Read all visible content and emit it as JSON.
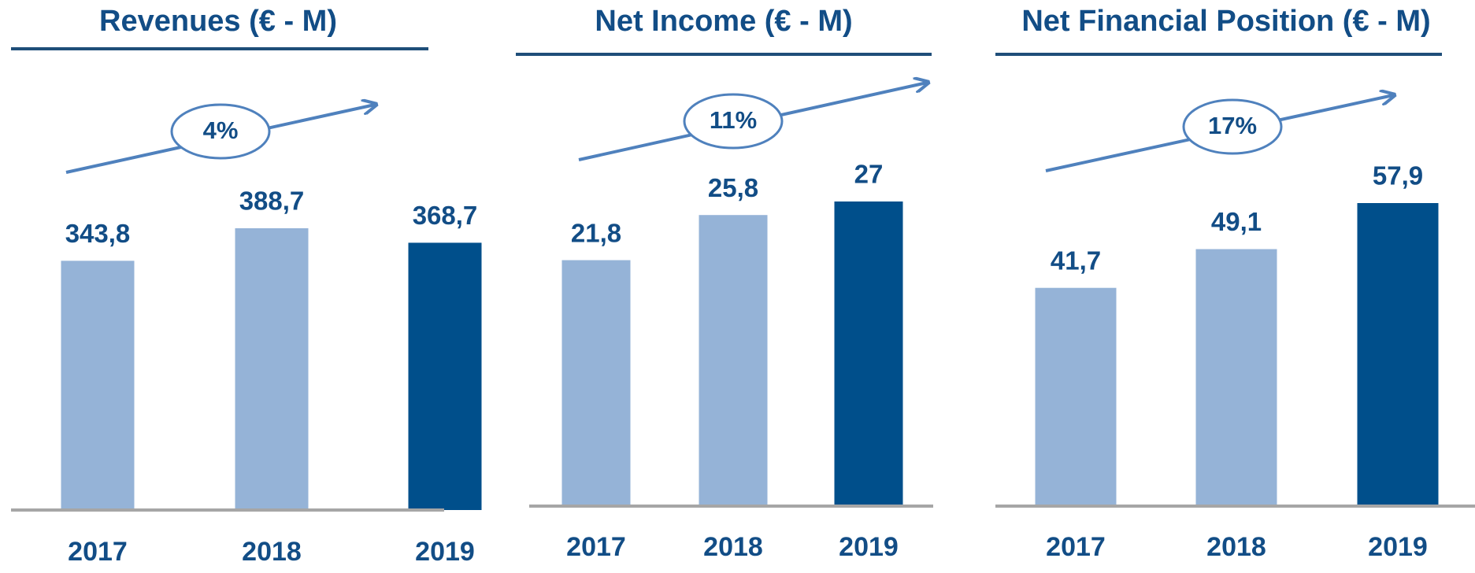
{
  "chart_data": [
    {
      "type": "bar",
      "title": "Revenues (€ - M)",
      "categories": [
        "2017",
        "2018",
        "2019"
      ],
      "values": [
        343.8,
        388.7,
        368.7
      ],
      "value_labels": [
        "343,8",
        "388,7",
        "368,7"
      ],
      "colors": [
        "#95b3d7",
        "#95b3d7",
        "#004f8b"
      ],
      "annotation": "4%"
    },
    {
      "type": "bar",
      "title": "Net Income (€ - M)",
      "categories": [
        "2017",
        "2018",
        "2019"
      ],
      "values": [
        21.8,
        25.8,
        27
      ],
      "value_labels": [
        "21,8",
        "25,8",
        "27"
      ],
      "colors": [
        "#95b3d7",
        "#95b3d7",
        "#004f8b"
      ],
      "annotation": "11%"
    },
    {
      "type": "bar",
      "title": "Net Financial Position (€ - M)",
      "categories": [
        "2017",
        "2018",
        "2019"
      ],
      "values": [
        41.7,
        49.1,
        57.9
      ],
      "value_labels": [
        "41,7",
        "49,1",
        "57,9"
      ],
      "colors": [
        "#95b3d7",
        "#95b3d7",
        "#004f8b"
      ],
      "annotation": "17%"
    }
  ]
}
